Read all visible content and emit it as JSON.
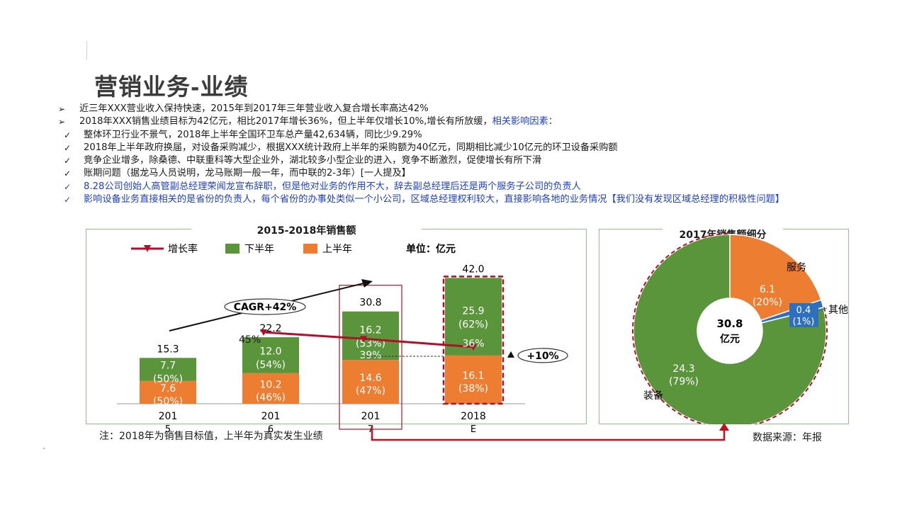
{
  "slide": {
    "title_main": "营销业务",
    "title_dash": "-",
    "title_sub": "业绩",
    "bullets": [
      {
        "marker": "➢",
        "text": "近三年XXX营业收入保持快速，2015年到2017年三年营业收入复合增长率高达42%"
      },
      {
        "marker": "➢",
        "text": "2018年XXX销售业绩目标为42亿元，相比2017年增长36%，但上半年仅增长10%,增长有所放缓，",
        "highlight": "相关影响因素："
      },
      {
        "marker": "✓",
        "text": "整体环卫行业不景气，2018年上半年全国环卫车总产量42,634辆，同比少9.29%"
      },
      {
        "marker": "✓",
        "text": "2018年上半年政府换届，对设备采购减少，根据XXX统计政府上半年的采购额为40亿元，同期相比减少10亿元的环卫设备采购额"
      },
      {
        "marker": "✓",
        "text": "竞争企业增多，除桑德、中联重科等大型企业外，湖北较多小型企业的进入，竞争不断激烈，促使增长有所下滑"
      },
      {
        "marker": "✓",
        "text": "账期问题（据龙马人员说明，龙马账期一般一年，而中联的2-3年）[一人提及】"
      },
      {
        "marker": "✓",
        "text": "8.28公司创始人高管副总经理荣闻龙宣布辞职，但是他对业务的作用不大，辞去副总经理后还是两个服务子公司的负责人"
      },
      {
        "marker": "✓",
        "text": "影响设备业务直接相关的是省份的负责人，每个省份的办事处类似一个小公司，区域总经理权利较大，直接影响各地的业务情况【我们没有发现区域总经理的积极性问题】"
      }
    ],
    "note_left": "注：2018年为销售目标值，上半年为真实发生业绩",
    "note_right": "数据来源：年报"
  },
  "chart_data": [
    {
      "type": "bar",
      "stacked": true,
      "title": "2015-2018年销售额",
      "unit_label": "单位：亿元",
      "legend_placement": "top",
      "legend": [
        "增长率",
        "下半年",
        "上半年"
      ],
      "categories": [
        "2015",
        "2016",
        "2017",
        "2018E"
      ],
      "category_labels": [
        [
          "201",
          "5"
        ],
        [
          "201",
          "6"
        ],
        [
          "201",
          "7"
        ],
        [
          "2018",
          "E"
        ]
      ],
      "totals": [
        15.3,
        22.2,
        30.8,
        42.0
      ],
      "total_labels": [
        "15.3",
        "22.2",
        "30.8",
        "42.0"
      ],
      "series": [
        {
          "name": "上半年",
          "color": "#ed7d31",
          "values": [
            7.6,
            10.2,
            14.6,
            16.1
          ],
          "value_labels": [
            "7.6",
            "10.2",
            "14.6",
            "16.1"
          ],
          "pct_labels": [
            "(50%)",
            "(46%)",
            "(47%)",
            "(38%)"
          ]
        },
        {
          "name": "下半年",
          "color": "#5a953c",
          "values": [
            7.7,
            12.0,
            16.2,
            25.9
          ],
          "value_labels": [
            "7.7",
            "12.0",
            "16.2",
            "25.9"
          ],
          "pct_labels": [
            "(50%)",
            "(54%)",
            "(53%)",
            "(62%)"
          ]
        },
        {
          "name": "增长率",
          "color": "#b0102a",
          "growth_points": [
            [
              "2016",
              45
            ],
            [
              "2017",
              39
            ],
            [
              "2018E",
              36
            ]
          ],
          "labels": [
            "45%",
            "39%",
            "36%"
          ]
        }
      ],
      "annotations": {
        "cagr": "CAGR+42%",
        "h1_growth": "+10%"
      }
    },
    {
      "type": "pie",
      "donut": true,
      "title": "2017年销售额细分",
      "center_value": "30.8",
      "center_unit": "亿元",
      "slices": [
        {
          "name": "服务",
          "value": 6.1,
          "value_label": "6.1",
          "pct_label": "(20%)",
          "color": "#ed7d31"
        },
        {
          "name": "其他",
          "value": 0.4,
          "value_label": "0.4",
          "pct_label": "(1%)",
          "color": "#2f6fbf"
        },
        {
          "name": "装备",
          "value": 24.3,
          "value_label": "24.3",
          "pct_label": "(79%)",
          "color": "#5a953c"
        }
      ]
    }
  ]
}
